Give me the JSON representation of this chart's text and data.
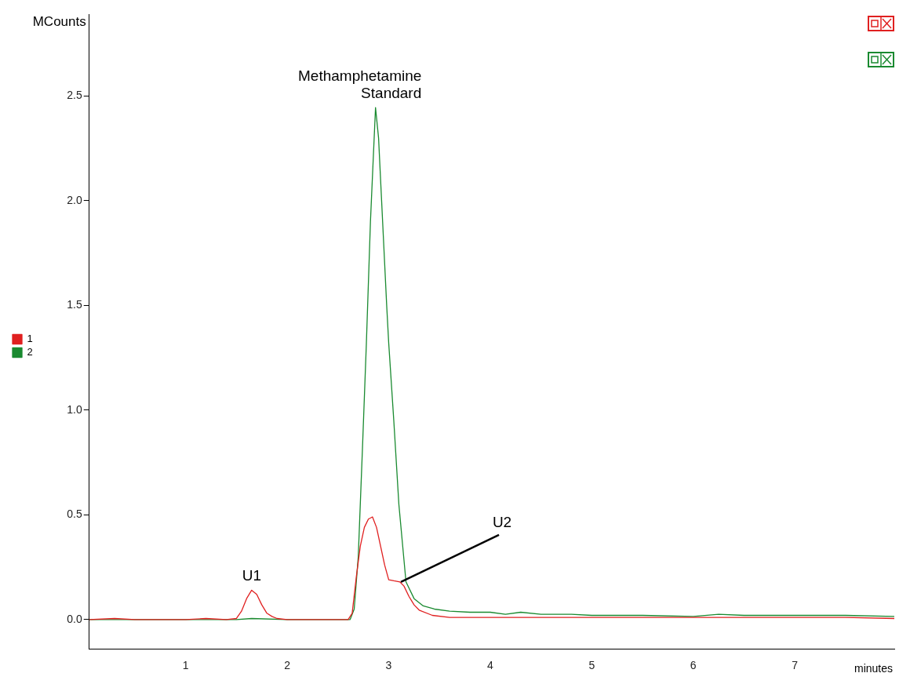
{
  "chart_data": {
    "type": "line",
    "xlabel": "minutes",
    "ylabel": "MCounts",
    "xlim": [
      0.05,
      7.98
    ],
    "ylim": [
      -0.14,
      2.89
    ],
    "xticks": [
      1,
      2,
      3,
      4,
      5,
      6,
      7
    ],
    "yticks": [
      {
        "value": 0,
        "label": "0.0"
      },
      0.5,
      {
        "value": 1,
        "label": "1.0"
      },
      1.5,
      {
        "value": 2,
        "label": "2.0"
      },
      2.5
    ],
    "grid": false,
    "legend": "left",
    "marker": "none",
    "line_style": "solid",
    "series": [
      {
        "name": "1",
        "color": "#e02020",
        "x": [
          0.05,
          0.3,
          0.5,
          0.8,
          1.0,
          1.2,
          1.4,
          1.5,
          1.55,
          1.6,
          1.65,
          1.7,
          1.75,
          1.8,
          1.85,
          1.9,
          2.0,
          2.3,
          2.6,
          2.64,
          2.68,
          2.72,
          2.76,
          2.8,
          2.84,
          2.88,
          2.92,
          2.96,
          3.0,
          3.05,
          3.11,
          3.15,
          3.2,
          3.25,
          3.3,
          3.43,
          3.6,
          4.0,
          4.5,
          5.0,
          5.5,
          6.0,
          6.5,
          7.0,
          7.5,
          7.98
        ],
        "values": [
          0.0,
          0.005,
          0.0,
          0.0,
          0.0,
          0.005,
          0.0,
          0.005,
          0.04,
          0.1,
          0.14,
          0.12,
          0.07,
          0.03,
          0.015,
          0.005,
          0.0,
          0.0,
          0.0,
          0.03,
          0.2,
          0.35,
          0.44,
          0.48,
          0.49,
          0.44,
          0.35,
          0.26,
          0.19,
          0.185,
          0.18,
          0.16,
          0.11,
          0.07,
          0.045,
          0.02,
          0.01,
          0.01,
          0.01,
          0.01,
          0.01,
          0.01,
          0.01,
          0.01,
          0.01,
          0.005
        ]
      },
      {
        "name": "2",
        "color": "#1a8a30",
        "x": [
          0.05,
          0.5,
          1.0,
          1.5,
          1.65,
          2.0,
          2.4,
          2.62,
          2.66,
          2.7,
          2.74,
          2.78,
          2.82,
          2.87,
          2.9,
          2.94,
          2.98,
          3.0,
          3.05,
          3.1,
          3.17,
          3.25,
          3.34,
          3.45,
          3.6,
          3.8,
          4.0,
          4.15,
          4.3,
          4.5,
          4.8,
          5.0,
          5.5,
          6.0,
          6.25,
          6.5,
          7.0,
          7.5,
          7.98
        ],
        "values": [
          0.0,
          0.0,
          0.0,
          0.0,
          0.005,
          0.0,
          0.0,
          0.0,
          0.05,
          0.3,
          0.8,
          1.32,
          1.9,
          2.445,
          2.3,
          1.9,
          1.5,
          1.32,
          0.95,
          0.55,
          0.18,
          0.1,
          0.065,
          0.05,
          0.04,
          0.035,
          0.035,
          0.025,
          0.035,
          0.025,
          0.025,
          0.02,
          0.02,
          0.015,
          0.025,
          0.02,
          0.02,
          0.02,
          0.015
        ]
      }
    ],
    "annotations": [
      {
        "text": "Methamphetamine Standard",
        "x": 2.87,
        "y": 2.445
      },
      {
        "text": "U1",
        "x": 1.65,
        "y": 0.14
      },
      {
        "text": "U2",
        "x": 3.12,
        "y": 0.18
      }
    ]
  }
}
